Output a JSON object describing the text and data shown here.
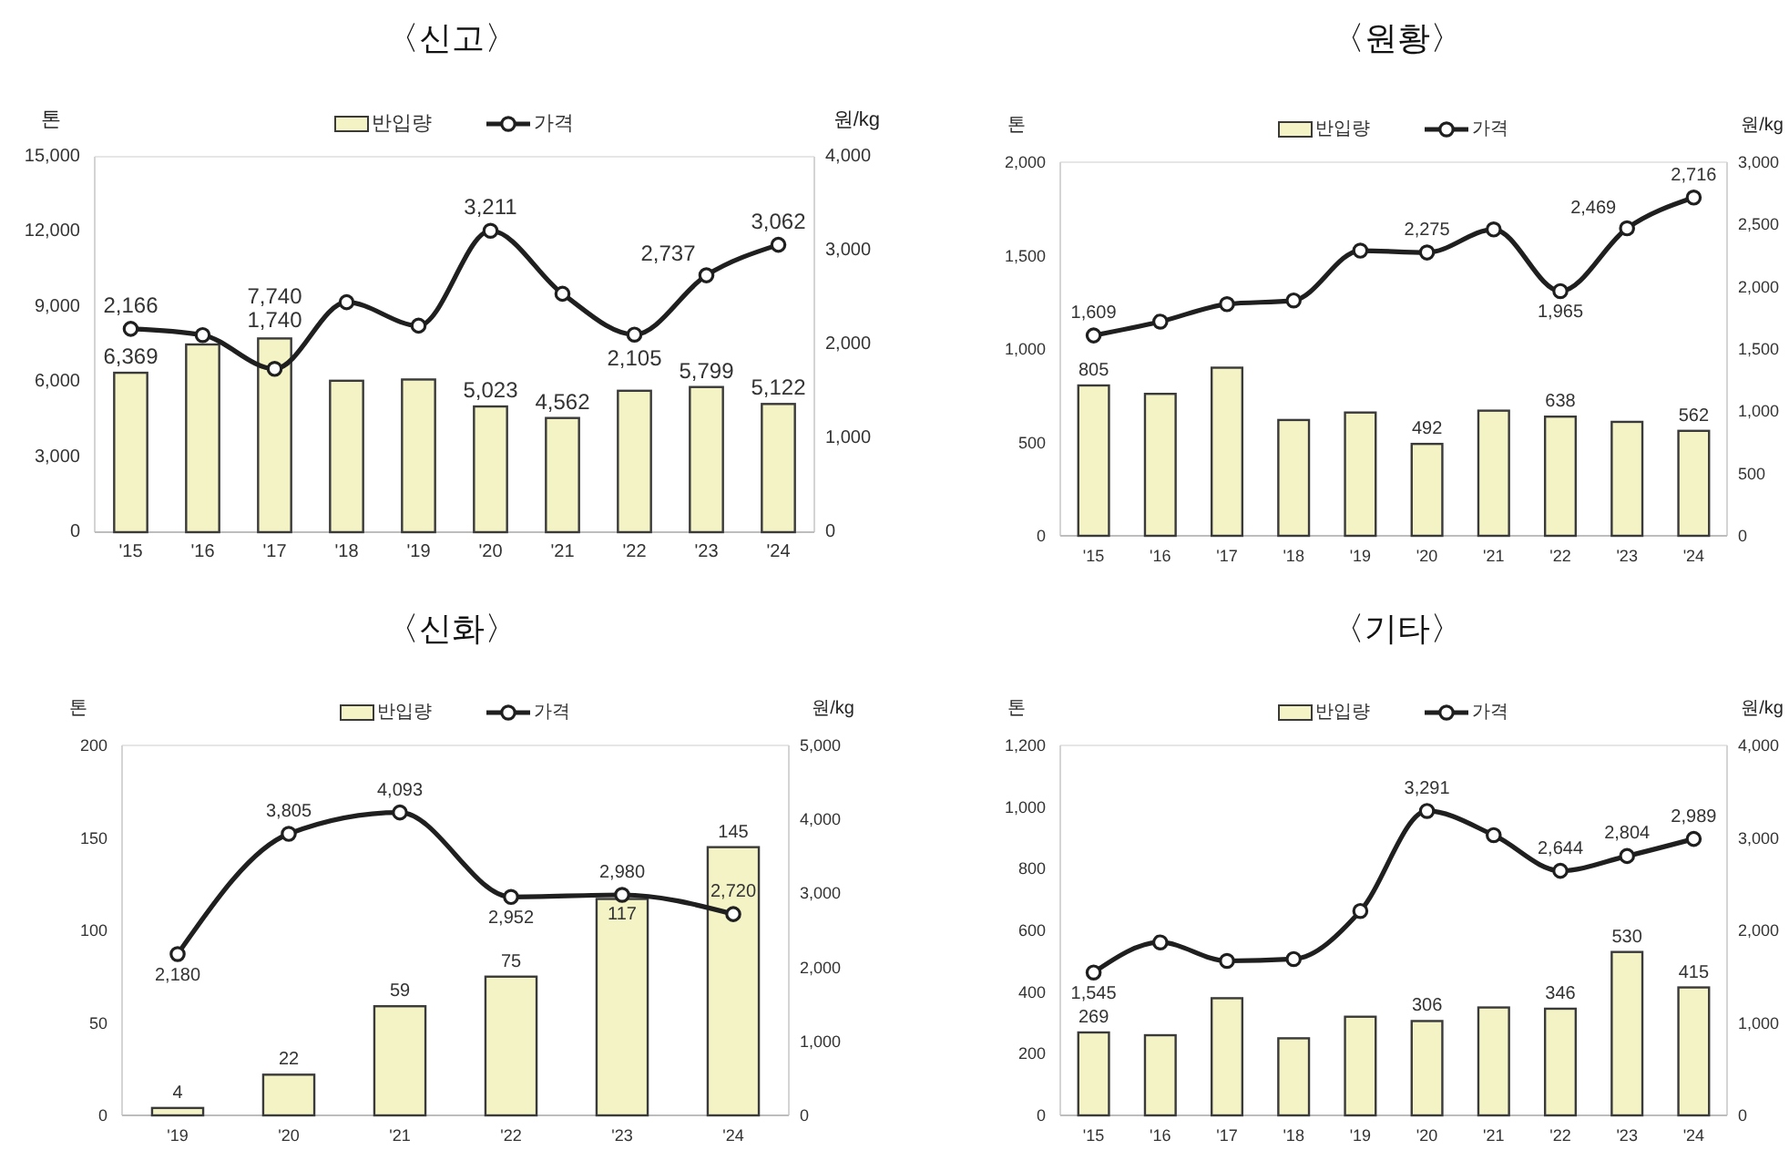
{
  "chart_data": [
    {
      "type": "bar",
      "title": "〈신고〉",
      "ylabel": "톤",
      "y2label": "원/kg",
      "legend": "top",
      "categories": [
        "'15",
        "'16",
        "'17",
        "'18",
        "'19",
        "'20",
        "'21",
        "'22",
        "'23",
        "'24"
      ],
      "ylim": [
        0,
        15000
      ],
      "yticks": [
        {
          "value": 0,
          "label": "0"
        },
        {
          "value": 3000,
          "label": "3,000"
        },
        {
          "value": 6000,
          "label": "6,000"
        },
        {
          "value": 9000,
          "label": "9,000"
        },
        {
          "value": 12000,
          "label": "12,000"
        },
        {
          "value": 15000,
          "label": "15,000"
        }
      ],
      "y2lim": [
        0,
        4000
      ],
      "y2ticks": [
        {
          "value": 0,
          "label": "0"
        },
        {
          "value": 1000,
          "label": "1,000"
        },
        {
          "value": 2000,
          "label": "2,000"
        },
        {
          "value": 3000,
          "label": "3,000"
        },
        {
          "value": 4000,
          "label": "4,000"
        }
      ],
      "series": [
        {
          "name": "반입량",
          "color": "#f3f3c6",
          "values": [
            6369,
            7500,
            7740,
            6050,
            6100,
            5023,
            4562,
            5650,
            5799,
            5122
          ],
          "value_labels": [
            "6,369",
            null,
            "7,740",
            null,
            null,
            "5,023",
            "4,562",
            null,
            "5,799",
            "5,122"
          ]
        },
        {
          "name": "가격",
          "type": "line",
          "axis": "y2",
          "marker": "circle",
          "color": "#1f1f1f",
          "values": [
            2166,
            2100,
            1740,
            2450,
            2200,
            3211,
            2540,
            2105,
            2737,
            3062
          ],
          "value_labels": [
            "2,166",
            null,
            "1,740",
            null,
            null,
            "3,211",
            null,
            "2,105",
            "2,737",
            "3,062"
          ]
        }
      ]
    },
    {
      "type": "bar",
      "title": "〈원황〉",
      "ylabel": "톤",
      "y2label": "원/kg",
      "legend": "top",
      "categories": [
        "'15",
        "'16",
        "'17",
        "'18",
        "'19",
        "'20",
        "'21",
        "'22",
        "'23",
        "'24"
      ],
      "ylim": [
        0,
        2000
      ],
      "yticks": [
        {
          "value": 0,
          "label": "0"
        },
        500,
        {
          "value": 1000,
          "label": "1,000"
        },
        {
          "value": 1500,
          "label": "1,500"
        },
        {
          "value": 2000,
          "label": "2,000"
        }
      ],
      "y2lim": [
        0,
        3000
      ],
      "y2ticks": [
        {
          "value": 0,
          "label": "0"
        },
        500,
        {
          "value": 1000,
          "label": "1,000"
        },
        {
          "value": 1500,
          "label": "1,500"
        },
        {
          "value": 2000,
          "label": "2,000"
        },
        {
          "value": 2500,
          "label": "2,500"
        },
        {
          "value": 3000,
          "label": "3,000"
        }
      ],
      "series": [
        {
          "name": "반입량",
          "color": "#f3f3c6",
          "values": [
            805,
            760,
            900,
            620,
            660,
            492,
            670,
            638,
            610,
            562
          ],
          "value_labels": [
            "805",
            null,
            null,
            null,
            null,
            "492",
            null,
            "638",
            null,
            "562"
          ]
        },
        {
          "name": "가격",
          "type": "line",
          "axis": "y2",
          "marker": "circle",
          "color": "#1f1f1f",
          "values": [
            1609,
            1720,
            1860,
            1890,
            2290,
            2275,
            2460,
            1965,
            2469,
            2716
          ],
          "value_labels": [
            "1,609",
            null,
            null,
            null,
            null,
            "2,275",
            null,
            "1,965",
            "2,469",
            "2,716"
          ]
        }
      ]
    },
    {
      "type": "bar",
      "title": "〈신화〉",
      "ylabel": "톤",
      "y2label": "원/kg",
      "legend": "top",
      "categories": [
        "'19",
        "'20",
        "'21",
        "'22",
        "'23",
        "'24"
      ],
      "ylim": [
        0,
        200
      ],
      "yticks": [
        {
          "value": 0,
          "label": "0"
        },
        50,
        100,
        150,
        200
      ],
      "y2lim": [
        0,
        5000
      ],
      "y2ticks": [
        {
          "value": 0,
          "label": "0"
        },
        {
          "value": 1000,
          "label": "1,000"
        },
        {
          "value": 2000,
          "label": "2,000"
        },
        {
          "value": 3000,
          "label": "3,000"
        },
        {
          "value": 4000,
          "label": "4,000"
        },
        {
          "value": 5000,
          "label": "5,000"
        }
      ],
      "series": [
        {
          "name": "반입량",
          "color": "#f3f3c6",
          "values": [
            4,
            22,
            59,
            75,
            117,
            145
          ],
          "value_labels": [
            "4",
            "22",
            "59",
            "75",
            "117",
            "145"
          ]
        },
        {
          "name": "가격",
          "type": "line",
          "axis": "y2",
          "marker": "circle",
          "color": "#1f1f1f",
          "values": [
            2180,
            3805,
            4093,
            2952,
            2980,
            2720
          ],
          "value_labels": [
            "2,180",
            "3,805",
            "4,093",
            "2,952",
            "2,980",
            "2,720"
          ]
        }
      ]
    },
    {
      "type": "bar",
      "title": "〈기타〉",
      "ylabel": "톤",
      "y2label": "원/kg",
      "legend": "top",
      "categories": [
        "'15",
        "'16",
        "'17",
        "'18",
        "'19",
        "'20",
        "'21",
        "'22",
        "'23",
        "'24"
      ],
      "ylim": [
        0,
        1200
      ],
      "yticks": [
        {
          "value": 0,
          "label": "0"
        },
        200,
        400,
        600,
        800,
        {
          "value": 1000,
          "label": "1,000"
        },
        {
          "value": 1200,
          "label": "1,200"
        }
      ],
      "y2lim": [
        0,
        4000
      ],
      "y2ticks": [
        {
          "value": 0,
          "label": "0"
        },
        {
          "value": 1000,
          "label": "1,000"
        },
        {
          "value": 2000,
          "label": "2,000"
        },
        {
          "value": 3000,
          "label": "3,000"
        },
        {
          "value": 4000,
          "label": "4,000"
        }
      ],
      "series": [
        {
          "name": "반입량",
          "color": "#f3f3c6",
          "values": [
            269,
            260,
            380,
            250,
            320,
            306,
            350,
            346,
            530,
            415
          ],
          "value_labels": [
            "269",
            null,
            null,
            null,
            null,
            "306",
            null,
            "346",
            "530",
            "415"
          ]
        },
        {
          "name": "가격",
          "type": "line",
          "axis": "y2",
          "marker": "circle",
          "color": "#1f1f1f",
          "values": [
            1545,
            1870,
            1670,
            1690,
            2210,
            3291,
            3030,
            2644,
            2804,
            2989
          ],
          "value_labels": [
            "1,545",
            null,
            null,
            null,
            null,
            "3,291",
            null,
            "2,644",
            "2,804",
            "2,989"
          ]
        }
      ]
    }
  ]
}
